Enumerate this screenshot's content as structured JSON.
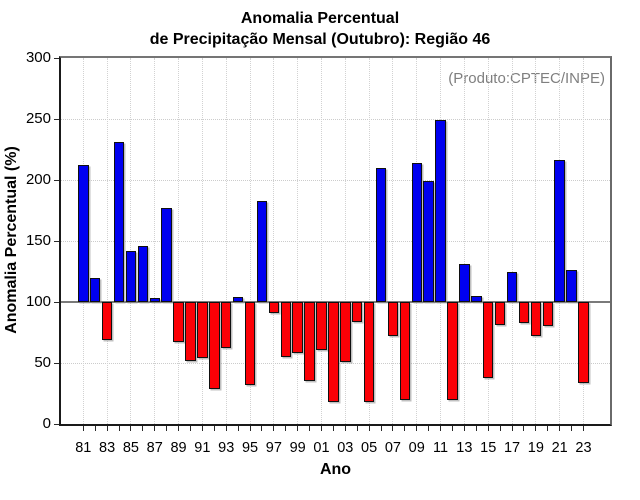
{
  "title": {
    "line1": "Anomalia Percentual",
    "line2": "de Precipitação Mensal (Outubro): Região 46"
  },
  "annotation": "(Produto:CPTEC/INPE)",
  "axes": {
    "x_label": "Ano",
    "y_label": "Anomalia Percentual (%)"
  },
  "colors": {
    "bar_above_baseline": "#0000f0",
    "bar_below_baseline": "#fb0006",
    "baseline_line": "#7a7a7a",
    "grid_line": "#cccccc",
    "annotation_text": "#7f7f7f"
  },
  "chart_data": {
    "type": "bar",
    "title": "Anomalia Percentual de Precipitação Mensal (Outubro): Região 46",
    "xlabel": "Ano",
    "ylabel": "Anomalia Percentual (%)",
    "source_note": "(Produto:CPTEC/INPE)",
    "baseline": 100,
    "ylim": [
      0,
      300
    ],
    "y_ticks": [
      0,
      50,
      100,
      150,
      200,
      250,
      300
    ],
    "grid": true,
    "years": [
      1981,
      1982,
      1983,
      1984,
      1985,
      1986,
      1987,
      1988,
      1989,
      1990,
      1991,
      1992,
      1993,
      1994,
      1995,
      1996,
      1997,
      1998,
      1999,
      2000,
      2001,
      2002,
      2003,
      2004,
      2005,
      2006,
      2007,
      2008,
      2009,
      2010,
      2011,
      2012,
      2013,
      2014,
      2015,
      2016,
      2017,
      2018,
      2019,
      2020,
      2021,
      2022,
      2023
    ],
    "values": [
      212,
      120,
      69,
      231,
      142,
      146,
      103,
      177,
      67,
      52,
      54,
      29,
      62,
      104,
      32,
      183,
      91,
      55,
      58,
      35,
      61,
      18,
      51,
      84,
      18,
      210,
      72,
      20,
      214,
      199,
      249,
      20,
      131,
      105,
      38,
      81,
      125,
      83,
      72,
      80,
      216,
      126,
      34
    ],
    "x_tick_labels": [
      "81",
      "83",
      "85",
      "87",
      "89",
      "91",
      "93",
      "95",
      "97",
      "99",
      "01",
      "03",
      "05",
      "07",
      "09",
      "11",
      "13",
      "15",
      "17",
      "19",
      "21",
      "23"
    ]
  }
}
